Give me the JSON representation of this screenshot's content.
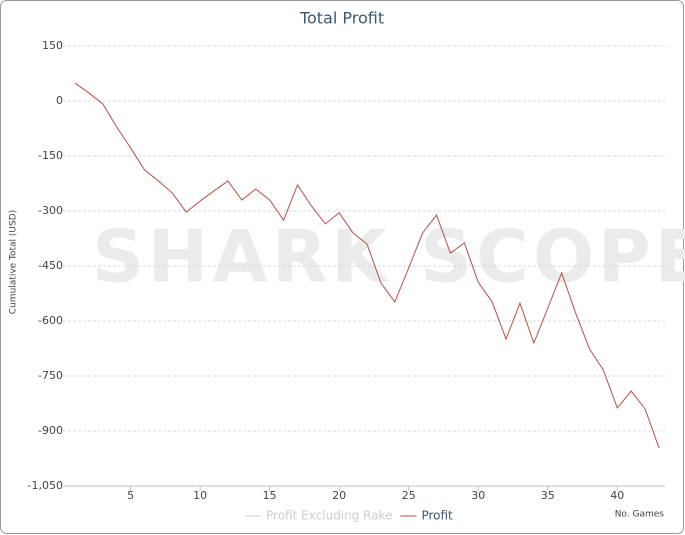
{
  "chart_data": {
    "type": "line",
    "title": "Total Profit",
    "watermark": "SHARK SCOPE",
    "xlabel": "No. Games",
    "ylabel": "Cumulative Total (USD)",
    "x": [
      1,
      2,
      3,
      4,
      5,
      6,
      7,
      8,
      9,
      10,
      11,
      12,
      13,
      14,
      15,
      16,
      17,
      18,
      19,
      20,
      21,
      22,
      23,
      24,
      25,
      26,
      27,
      28,
      29,
      30,
      31,
      32,
      33,
      34,
      35,
      36,
      37,
      38,
      39,
      40,
      41,
      42,
      43
    ],
    "series": [
      {
        "name": "Profit Excluding Rake",
        "color": "#cccccc",
        "visible": false
      },
      {
        "name": "Profit",
        "color": "#b5504a",
        "values": [
          49,
          22,
          -8,
          -71,
          -128,
          -188,
          -218,
          -251,
          -303,
          -273,
          -245,
          -218,
          -270,
          -240,
          -270,
          -325,
          -229,
          -286,
          -335,
          -305,
          -360,
          -390,
          -496,
          -548,
          -455,
          -360,
          -311,
          -415,
          -387,
          -494,
          -548,
          -649,
          -551,
          -660,
          -565,
          -469,
          -578,
          -676,
          -734,
          -837,
          -791,
          -840,
          -946
        ]
      }
    ],
    "xlim": [
      1,
      43
    ],
    "xticks": [
      5,
      10,
      15,
      20,
      25,
      30,
      35,
      40
    ],
    "ylim": [
      -1050,
      150
    ],
    "yticks": [
      150,
      0,
      -150,
      -300,
      -450,
      -600,
      -750,
      -900,
      {
        "value": -1050,
        "label": "-1,050"
      }
    ],
    "grid": true
  }
}
